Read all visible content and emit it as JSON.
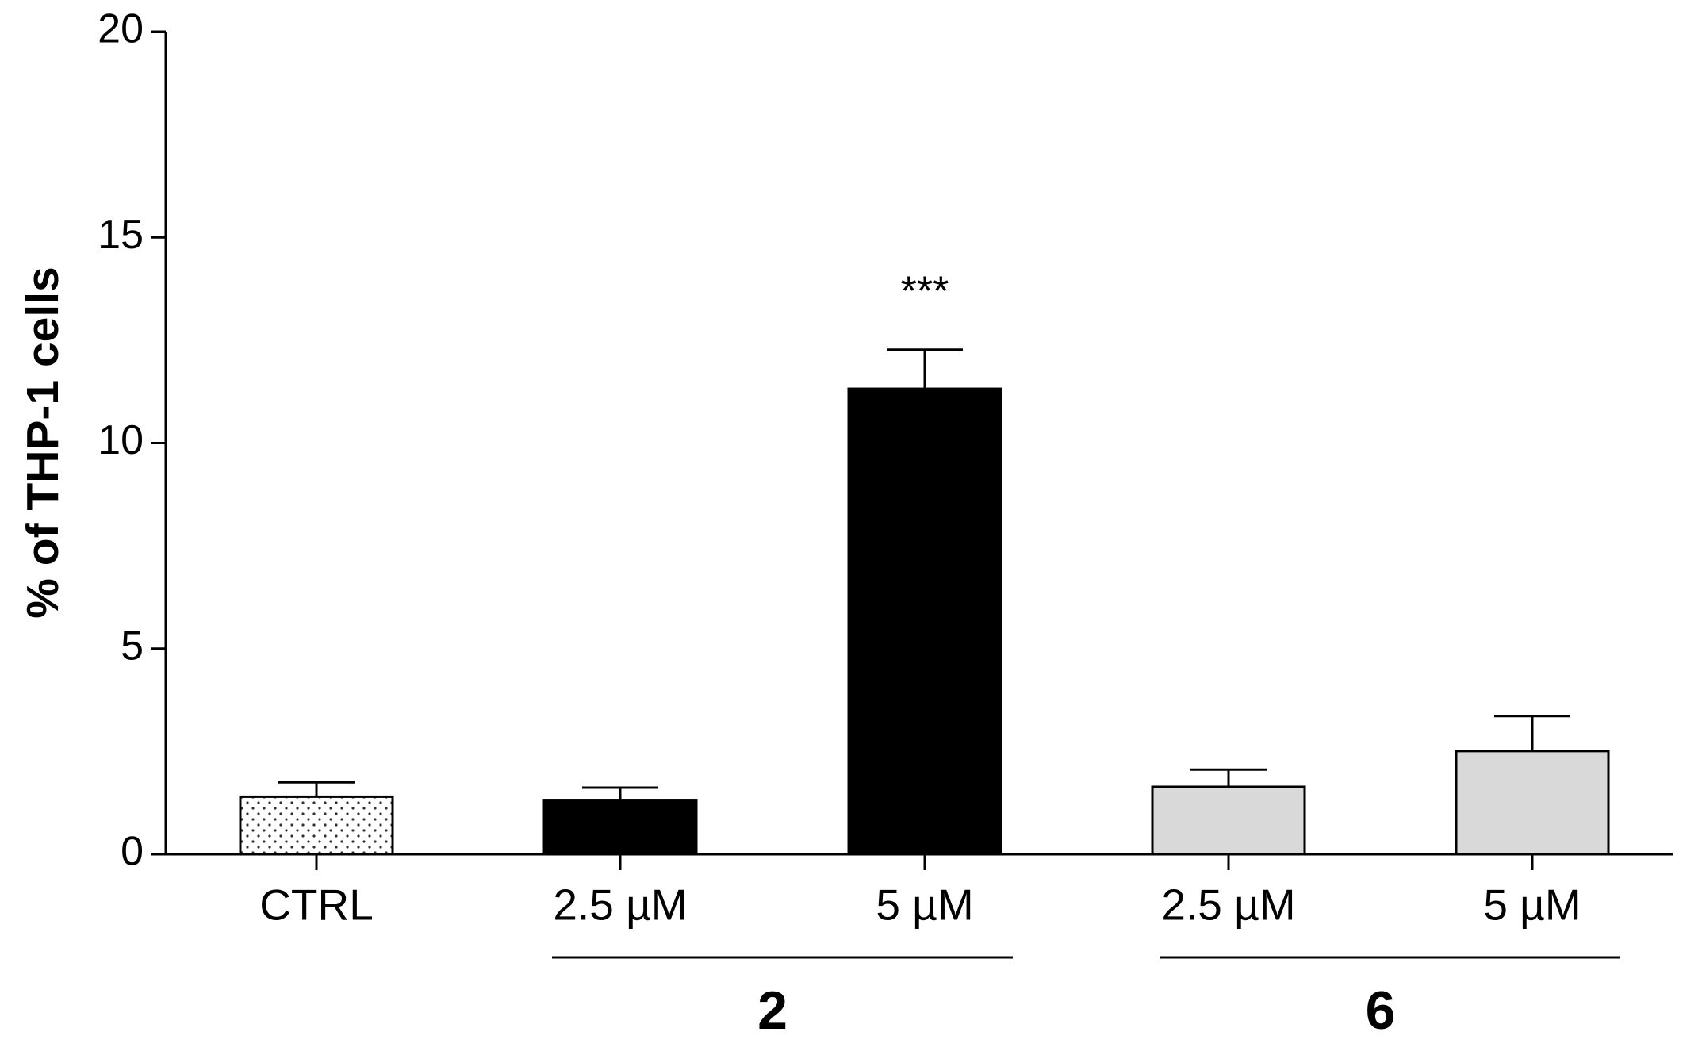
{
  "chart_data": {
    "type": "bar",
    "y_label": "% of THP-1 cells",
    "categories": [
      "CTRL",
      "2.5 µM",
      "5 µM",
      "2.5 µM",
      "5 µM"
    ],
    "values": [
      1.4,
      1.32,
      11.32,
      1.64,
      2.51
    ],
    "errors": [
      0.35,
      0.3,
      0.95,
      0.42,
      0.85
    ],
    "colors": [
      "#ffffff",
      "#000000",
      "#000000",
      "#d9d9d9",
      "#d9d9d9"
    ],
    "patterns": [
      "dots",
      "solid",
      "solid",
      "solid",
      "solid"
    ],
    "significance": [
      null,
      null,
      "***",
      null,
      null
    ],
    "groups": [
      "2",
      "6"
    ],
    "ylim": [
      0,
      20
    ],
    "yticks": [
      0,
      5,
      10,
      15,
      20
    ],
    "grid": false
  }
}
